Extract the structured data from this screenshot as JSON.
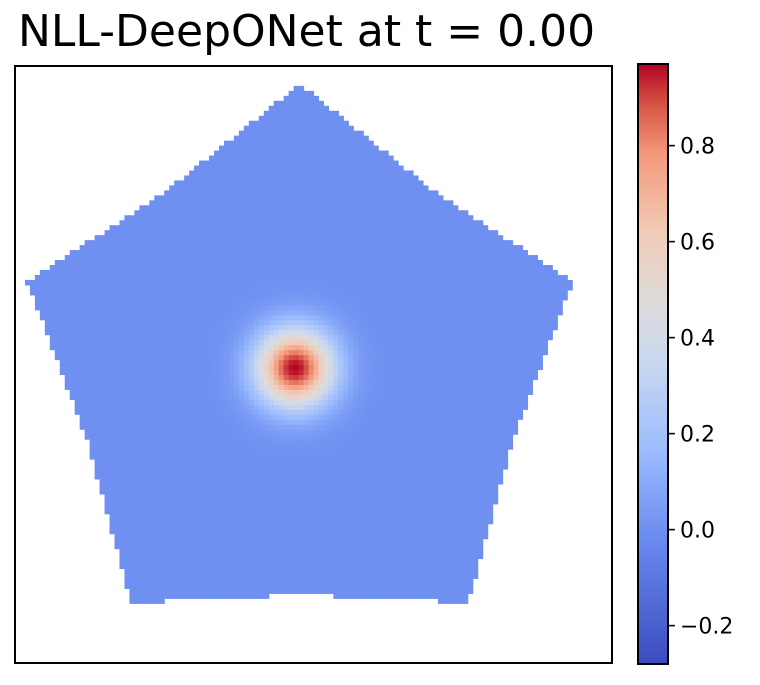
{
  "chart_data": {
    "type": "heatmap",
    "title": "NLL-DeepONet at t = 0.00",
    "xlabel": "",
    "ylabel": "",
    "xlim": [
      0,
      1
    ],
    "ylim": [
      0,
      1
    ],
    "grid": false,
    "axis_ticks": false,
    "colormap": "coolwarm",
    "domain": {
      "shape": "star",
      "points": 5,
      "center": [
        0.477,
        0.49
      ],
      "outer_radius": 0.48,
      "inner_radius": 0.375,
      "orientation_deg": 90
    },
    "field": {
      "background_value": 0.0,
      "peak_value": 0.97,
      "peak_center": [
        0.469,
        0.495
      ],
      "peak_width": 0.045
    },
    "colorbar": {
      "min": -0.28,
      "max": 0.97,
      "ticks": [
        -0.2,
        0.0,
        0.2,
        0.4,
        0.6,
        0.8
      ],
      "tick_labels": [
        "−0.2",
        "0.0",
        "0.2",
        "0.4",
        "0.6",
        "0.8"
      ]
    }
  }
}
